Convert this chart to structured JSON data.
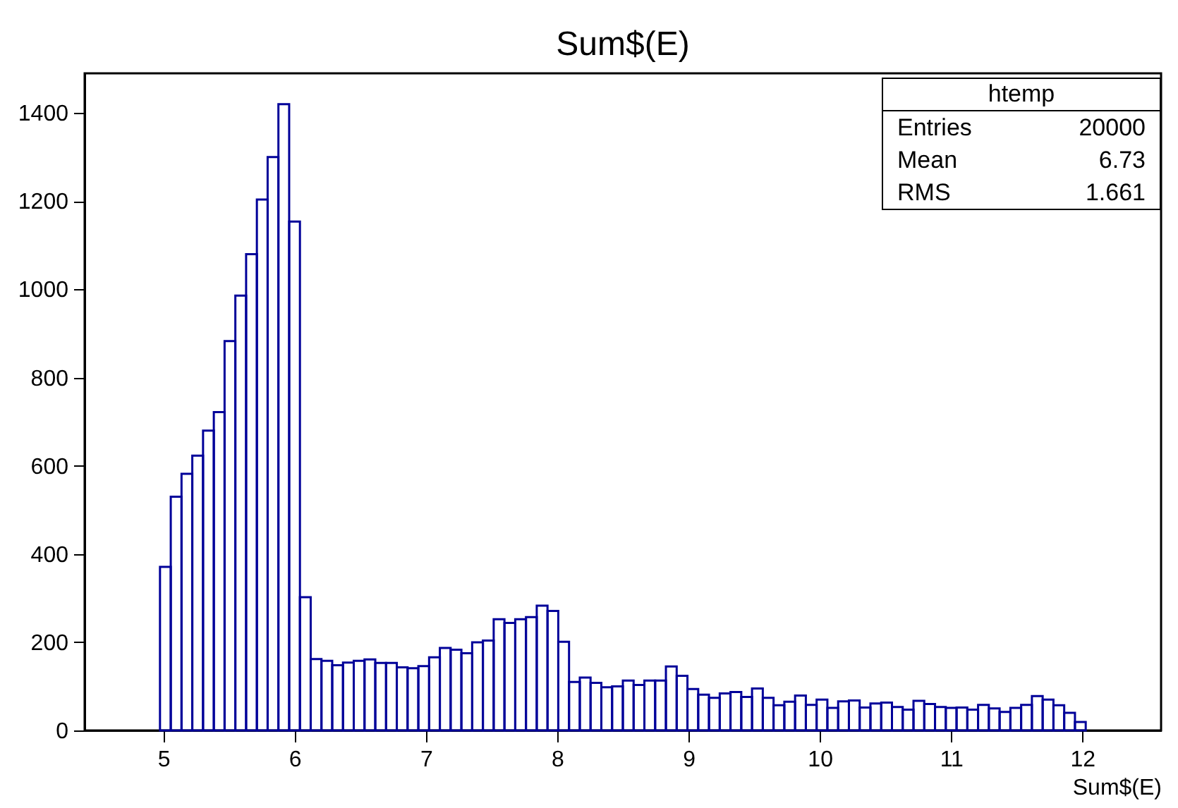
{
  "chart_data": {
    "type": "histogram",
    "title": "Sum$(E)",
    "xlabel": "Sum$(E)",
    "annotations": [
      "htemp",
      "Entries",
      "20000",
      "Mean",
      "6.73",
      "RMS",
      "1.661"
    ],
    "bins": [
      4.974,
      5.056,
      5.138,
      5.22,
      5.302,
      5.384,
      5.466,
      5.548,
      5.63,
      5.712,
      5.794,
      5.876,
      5.958,
      6.04,
      6.122,
      6.204,
      6.286,
      6.368,
      6.45,
      6.532,
      6.614,
      6.696,
      6.778,
      6.86,
      6.942,
      7.024,
      7.106,
      7.188,
      7.27,
      7.352,
      7.434,
      7.516,
      7.598,
      7.68,
      7.762,
      7.844,
      7.926,
      8.008,
      8.09,
      8.172,
      8.254,
      8.336,
      8.418,
      8.5,
      8.582,
      8.664,
      8.746,
      8.828,
      8.91,
      8.992,
      9.074,
      9.156,
      9.238,
      9.32,
      9.402,
      9.484,
      9.566,
      9.648,
      9.73,
      9.812,
      9.894,
      9.976,
      10.058,
      10.14,
      10.222,
      10.304,
      10.386,
      10.468,
      10.55,
      10.632,
      10.714,
      10.796,
      10.878,
      10.96,
      11.042,
      11.124,
      11.206,
      11.288,
      11.37,
      11.452,
      11.534,
      11.616,
      11.698,
      11.78,
      11.862,
      11.944,
      12.026
    ],
    "values": [
      371,
      530,
      582,
      623,
      680,
      722,
      883,
      986,
      1080,
      1204,
      1300,
      1420,
      1154,
      302,
      162,
      158,
      148,
      154,
      158,
      161,
      153,
      153,
      143,
      141,
      146,
      166,
      187,
      183,
      175,
      200,
      204,
      252,
      244,
      252,
      257,
      283,
      271,
      201,
      110,
      120,
      108,
      98,
      100,
      113,
      103,
      113,
      113,
      145,
      124,
      94,
      81,
      74,
      84,
      87,
      76,
      95,
      74,
      57,
      65,
      79,
      58,
      70,
      51,
      66,
      68,
      52,
      61,
      63,
      53,
      47,
      67,
      60,
      53,
      51,
      52,
      47,
      58,
      50,
      42,
      51,
      58,
      78,
      70,
      57,
      40,
      19
    ],
    "color": "#000099",
    "xlim": [
      4.4,
      12.6
    ],
    "xticks": [
      5,
      6,
      7,
      8,
      9,
      10,
      11,
      12
    ],
    "ylim": [
      0,
      1490
    ],
    "yticks": [
      0,
      200,
      400,
      600,
      800,
      1000,
      1200,
      1400
    ],
    "grid": false
  }
}
